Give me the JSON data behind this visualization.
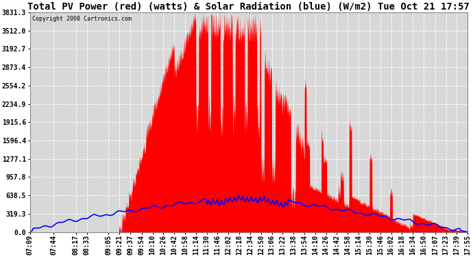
{
  "title": "Total PV Power (red) (watts) & Solar Radiation (blue) (W/m2) Tue Oct 21 17:57",
  "copyright_text": "Copyright 2008 Cartronics.com",
  "y_ticks": [
    0.0,
    319.3,
    638.5,
    957.8,
    1277.1,
    1596.4,
    1915.6,
    2234.9,
    2554.2,
    2873.4,
    3192.7,
    3512.0,
    3831.3
  ],
  "y_max": 3831.3,
  "y_min": 0.0,
  "bg_color": "#ffffff",
  "plot_bg_color": "#d8d8d8",
  "grid_color": "#ffffff",
  "red_color": "#ff0000",
  "blue_color": "#0000ff",
  "title_fontsize": 10,
  "tick_label_fontsize": 7
}
